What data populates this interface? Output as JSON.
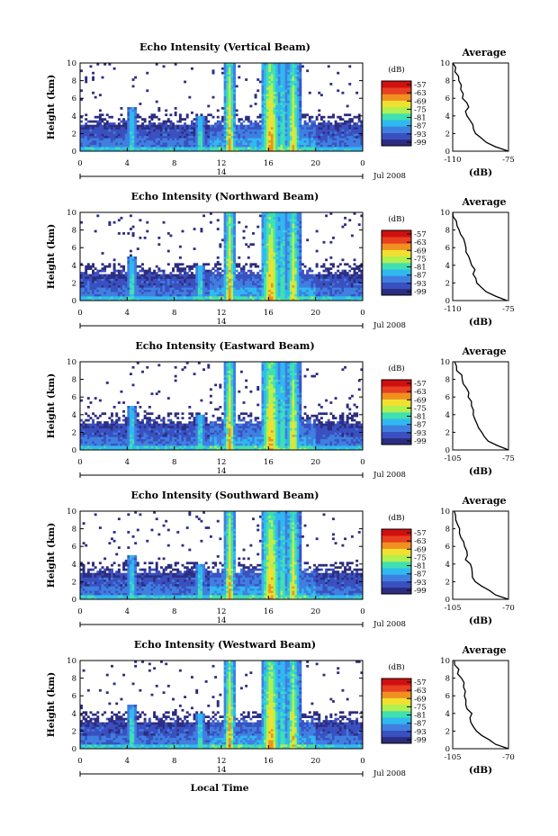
{
  "xlabel": "Local Time",
  "ylabel": "Height (km)",
  "date_label": "Jul 2008",
  "day_label": "14",
  "colorbar_unit": "(dB)",
  "colorbar_ticks": [
    "-57",
    "-63",
    "-69",
    "-75",
    "-81",
    "-87",
    "-93",
    "-99"
  ],
  "avg_title": "Average",
  "avg_xlabel": "(dB)",
  "x_ticks": [
    "0",
    "4",
    "8",
    "12",
    "16",
    "20",
    "0"
  ],
  "y_ticks": [
    "0",
    "2",
    "4",
    "6",
    "8",
    "10"
  ],
  "colors": [
    "#2c2c80",
    "#3a50c0",
    "#3f7fe0",
    "#30b8f0",
    "#40e0b0",
    "#b0f050",
    "#f0e030",
    "#f09020",
    "#e84020",
    "#d01010"
  ],
  "chart_data": [
    {
      "type": "heatmap",
      "title": "Echo Intensity (Vertical Beam)",
      "x_range_hours": [
        0,
        24
      ],
      "ylim": [
        0,
        10
      ],
      "colorbar_range_db": [
        -99,
        -57
      ],
      "avg": {
        "type": "line",
        "xlim": [
          -110,
          -75
        ],
        "x_ticks": [
          "-110",
          "-75"
        ],
        "profile": [
          [
            -75,
            0
          ],
          [
            -82,
            0.5
          ],
          [
            -88,
            1
          ],
          [
            -92,
            1.5
          ],
          [
            -95,
            2
          ],
          [
            -97,
            2.5
          ],
          [
            -98,
            3
          ],
          [
            -99,
            3.5
          ],
          [
            -100,
            4
          ],
          [
            -101,
            4.5
          ],
          [
            -101,
            5
          ],
          [
            -102,
            5.5
          ],
          [
            -103,
            6
          ],
          [
            -104,
            6.5
          ],
          [
            -104,
            7
          ],
          [
            -105,
            7.5
          ],
          [
            -106,
            8
          ],
          [
            -107,
            8.5
          ],
          [
            -108,
            9
          ],
          [
            -109,
            9.5
          ],
          [
            -110,
            10
          ]
        ]
      }
    },
    {
      "type": "heatmap",
      "title": "Echo Intensity (Northward Beam)",
      "x_range_hours": [
        0,
        24
      ],
      "ylim": [
        0,
        10
      ],
      "colorbar_range_db": [
        -99,
        -57
      ],
      "avg": {
        "type": "line",
        "xlim": [
          -110,
          -75
        ],
        "x_ticks": [
          "-110",
          "-75"
        ],
        "profile": [
          [
            -76,
            0
          ],
          [
            -82,
            0.5
          ],
          [
            -88,
            1
          ],
          [
            -92,
            1.5
          ],
          [
            -95,
            2
          ],
          [
            -96,
            2.5
          ],
          [
            -97,
            3
          ],
          [
            -97,
            3.5
          ],
          [
            -97,
            4
          ],
          [
            -98,
            4.5
          ],
          [
            -100,
            5
          ],
          [
            -101,
            5.5
          ],
          [
            -102,
            6
          ],
          [
            -103,
            6.5
          ],
          [
            -104,
            7
          ],
          [
            -105,
            7.5
          ],
          [
            -106,
            8
          ],
          [
            -107,
            8.5
          ],
          [
            -108,
            9
          ],
          [
            -109,
            9.5
          ],
          [
            -110,
            10
          ]
        ]
      }
    },
    {
      "type": "heatmap",
      "title": "Echo Intensity (Eastward Beam)",
      "x_range_hours": [
        0,
        24
      ],
      "ylim": [
        0,
        10
      ],
      "colorbar_range_db": [
        -99,
        -57
      ],
      "avg": {
        "type": "line",
        "xlim": [
          -105,
          -75
        ],
        "x_ticks": [
          "-105",
          "-75"
        ],
        "profile": [
          [
            -75,
            0
          ],
          [
            -80,
            0.5
          ],
          [
            -85,
            1
          ],
          [
            -88,
            1.5
          ],
          [
            -90,
            2
          ],
          [
            -92,
            2.5
          ],
          [
            -93,
            3
          ],
          [
            -93,
            3.5
          ],
          [
            -93,
            4
          ],
          [
            -93,
            4.5
          ],
          [
            -94,
            5
          ],
          [
            -95,
            5.5
          ],
          [
            -96,
            6
          ],
          [
            -97,
            6.5
          ],
          [
            -98,
            7
          ],
          [
            -99,
            7.5
          ],
          [
            -100,
            8
          ],
          [
            -101,
            8.5
          ],
          [
            -102,
            9
          ],
          [
            -103,
            9.5
          ],
          [
            -104,
            10
          ]
        ]
      }
    },
    {
      "type": "heatmap",
      "title": "Echo Intensity (Southward Beam)",
      "x_range_hours": [
        0,
        24
      ],
      "ylim": [
        0,
        10
      ],
      "colorbar_range_db": [
        -99,
        -57
      ],
      "avg": {
        "type": "line",
        "xlim": [
          -105,
          -70
        ],
        "x_ticks": [
          "-105",
          "-70"
        ],
        "profile": [
          [
            -70,
            0
          ],
          [
            -77,
            0.5
          ],
          [
            -83,
            1
          ],
          [
            -87,
            1.5
          ],
          [
            -90,
            2
          ],
          [
            -92,
            2.5
          ],
          [
            -93,
            3
          ],
          [
            -94,
            3.5
          ],
          [
            -95,
            4
          ],
          [
            -96,
            4.5
          ],
          [
            -96,
            5
          ],
          [
            -97,
            5.5
          ],
          [
            -98,
            6
          ],
          [
            -99,
            6.5
          ],
          [
            -100,
            7
          ],
          [
            -100,
            7.5
          ],
          [
            -101,
            8
          ],
          [
            -102,
            8.5
          ],
          [
            -103,
            9
          ],
          [
            -104,
            9.5
          ],
          [
            -104,
            10
          ]
        ]
      }
    },
    {
      "type": "heatmap",
      "title": "Echo Intensity (Westward Beam)",
      "x_range_hours": [
        0,
        24
      ],
      "ylim": [
        0,
        10
      ],
      "colorbar_range_db": [
        -99,
        -57
      ],
      "avg": {
        "type": "line",
        "xlim": [
          -105,
          -70
        ],
        "x_ticks": [
          "-105",
          "-70"
        ],
        "profile": [
          [
            -70,
            0
          ],
          [
            -77,
            0.5
          ],
          [
            -83,
            1
          ],
          [
            -87,
            1.5
          ],
          [
            -90,
            2
          ],
          [
            -92,
            2.5
          ],
          [
            -93,
            3
          ],
          [
            -94,
            3.5
          ],
          [
            -94,
            4
          ],
          [
            -95,
            4.5
          ],
          [
            -96,
            5
          ],
          [
            -96,
            5.5
          ],
          [
            -97,
            6
          ],
          [
            -98,
            6.5
          ],
          [
            -98,
            7
          ],
          [
            -99,
            7.5
          ],
          [
            -100,
            8
          ],
          [
            -101,
            8.5
          ],
          [
            -102,
            9
          ],
          [
            -103,
            9.5
          ],
          [
            -104,
            10
          ]
        ]
      }
    }
  ]
}
